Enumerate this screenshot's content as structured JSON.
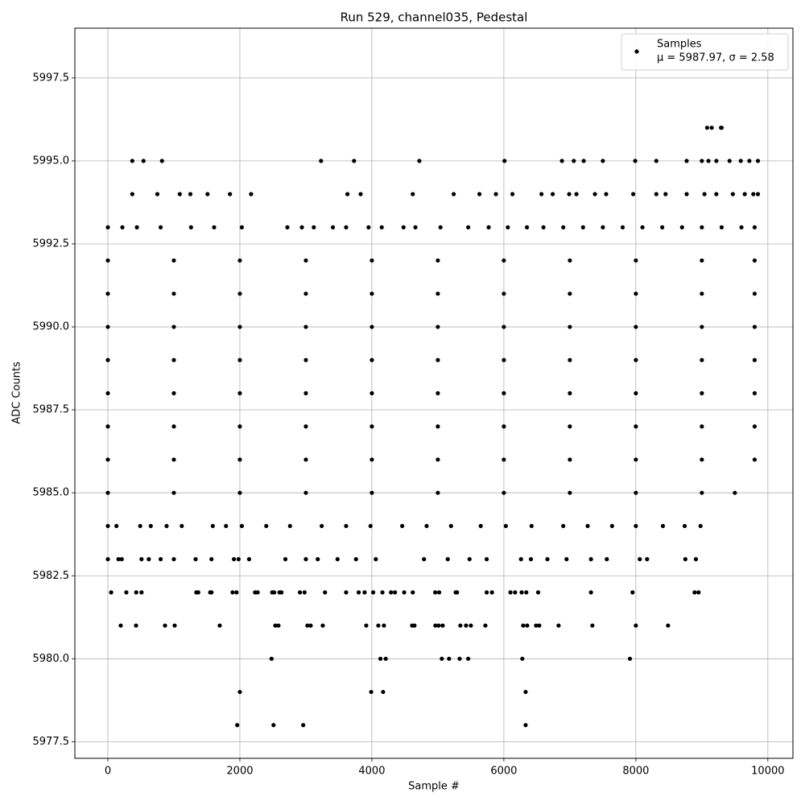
{
  "chart_data": {
    "type": "scatter",
    "title": "Run 529, channel035, Pedestal",
    "x_label": "Sample #",
    "y_label": "ADC Counts",
    "legend_position": "upper right",
    "legend_note": "μ = 5987.97, σ = 2.58",
    "grid": true,
    "xlim": [
      -500,
      10380
    ],
    "ylim": [
      5977.0,
      5999.0
    ],
    "xticks": [
      0,
      2000,
      4000,
      6000,
      8000,
      10000
    ],
    "yticks": [
      5977.5,
      {
        "value": 5980,
        "label": "5980.0"
      },
      5982.5,
      {
        "value": 5985,
        "label": "5985.0"
      },
      5987.5,
      {
        "value": 5990,
        "label": "5990.0"
      },
      5992.5,
      {
        "value": 5995,
        "label": "5995.0"
      },
      5997.5
    ],
    "series": [
      {
        "name": "Samples",
        "color": "#000000",
        "x": [
          1960,
          2510,
          2960,
          6330,
          2000,
          3990,
          4170,
          6330,
          2480,
          4130,
          4210,
          5060,
          5170,
          5330,
          5460,
          6280,
          7910,
          195,
          427,
          866,
          1012,
          1695,
          2537,
          2585,
          3024,
          3073,
          3256,
          3915,
          4098,
          4183,
          4610,
          4646,
          4963,
          5012,
          5073,
          5341,
          5427,
          5500,
          5720,
          6293,
          6354,
          6488,
          6537,
          6829,
          7341,
          8000,
          8488,
          50,
          280,
          430,
          510,
          1340,
          1370,
          1550,
          1570,
          1890,
          1950,
          2230,
          2270,
          2490,
          2520,
          2600,
          2630,
          2910,
          2980,
          3290,
          3610,
          3800,
          3890,
          4020,
          4160,
          4290,
          4350,
          4490,
          4620,
          4960,
          5020,
          5270,
          5290,
          5740,
          5820,
          6100,
          6170,
          6270,
          6340,
          6520,
          7320,
          7950,
          8890,
          8950,
          0,
          160,
          210,
          510,
          620,
          800,
          1000,
          1330,
          1570,
          1910,
          1980,
          2140,
          2690,
          3000,
          3180,
          3480,
          3760,
          4060,
          4790,
          5150,
          5480,
          5740,
          6260,
          6410,
          6660,
          6950,
          7320,
          7560,
          8060,
          8170,
          8750,
          8910,
          0,
          130,
          490,
          650,
          890,
          1120,
          1590,
          1790,
          2030,
          2400,
          2760,
          3240,
          3610,
          3980,
          4460,
          4830,
          5200,
          5650,
          6030,
          6420,
          6900,
          7270,
          7640,
          8000,
          8410,
          8740,
          8980,
          0,
          1000,
          2000,
          3000,
          4000,
          5000,
          6000,
          7000,
          8000,
          9000,
          9500,
          0,
          1000,
          2000,
          3000,
          4000,
          5000,
          6000,
          7000,
          8000,
          9000,
          9800,
          0,
          1000,
          2000,
          3000,
          4000,
          5000,
          6000,
          7000,
          8000,
          9000,
          9800,
          0,
          1000,
          2000,
          3000,
          4000,
          5000,
          6000,
          7000,
          8000,
          9000,
          9800,
          0,
          1000,
          2000,
          3000,
          4000,
          5000,
          6000,
          7000,
          8000,
          9000,
          9800,
          0,
          1000,
          2000,
          3000,
          4000,
          5000,
          6000,
          7000,
          8000,
          9000,
          9800,
          0,
          1000,
          2000,
          3000,
          4000,
          5000,
          6000,
          7000,
          8000,
          9000,
          9800,
          0,
          1000,
          2000,
          3000,
          4000,
          5000,
          6000,
          7000,
          8000,
          9000,
          9800,
          0,
          220,
          440,
          800,
          1260,
          1610,
          2030,
          2720,
          2940,
          3120,
          3410,
          3610,
          3950,
          4150,
          4480,
          4660,
          5040,
          5460,
          5770,
          6060,
          6350,
          6600,
          6900,
          7200,
          7500,
          7800,
          8100,
          8400,
          8700,
          9000,
          9300,
          9600,
          9800,
          370,
          750,
          1090,
          1250,
          1510,
          1850,
          2170,
          3630,
          3830,
          4620,
          5240,
          5630,
          5880,
          6130,
          6570,
          6740,
          6990,
          7100,
          7380,
          7550,
          7960,
          8310,
          8450,
          8770,
          9040,
          9220,
          9470,
          9650,
          9780,
          9850,
          370,
          540,
          820,
          3230,
          3730,
          4720,
          6010,
          6880,
          7060,
          7210,
          7500,
          7990,
          8310,
          8770,
          9000,
          9100,
          9220,
          9420,
          9590,
          9720,
          9850,
          9080,
          9150,
          9290,
          9300
        ],
        "values": [
          5978,
          5978,
          5978,
          5978,
          5979,
          5979,
          5979,
          5979,
          5980,
          5980,
          5980,
          5980,
          5980,
          5980,
          5980,
          5980,
          5980,
          5981,
          5981,
          5981,
          5981,
          5981,
          5981,
          5981,
          5981,
          5981,
          5981,
          5981,
          5981,
          5981,
          5981,
          5981,
          5981,
          5981,
          5981,
          5981,
          5981,
          5981,
          5981,
          5981,
          5981,
          5981,
          5981,
          5981,
          5981,
          5981,
          5981,
          5982,
          5982,
          5982,
          5982,
          5982,
          5982,
          5982,
          5982,
          5982,
          5982,
          5982,
          5982,
          5982,
          5982,
          5982,
          5982,
          5982,
          5982,
          5982,
          5982,
          5982,
          5982,
          5982,
          5982,
          5982,
          5982,
          5982,
          5982,
          5982,
          5982,
          5982,
          5982,
          5982,
          5982,
          5982,
          5982,
          5982,
          5982,
          5982,
          5982,
          5982,
          5982,
          5982,
          5983,
          5983,
          5983,
          5983,
          5983,
          5983,
          5983,
          5983,
          5983,
          5983,
          5983,
          5983,
          5983,
          5983,
          5983,
          5983,
          5983,
          5983,
          5983,
          5983,
          5983,
          5983,
          5983,
          5983,
          5983,
          5983,
          5983,
          5983,
          5983,
          5983,
          5983,
          5983,
          5984,
          5984,
          5984,
          5984,
          5984,
          5984,
          5984,
          5984,
          5984,
          5984,
          5984,
          5984,
          5984,
          5984,
          5984,
          5984,
          5984,
          5984,
          5984,
          5984,
          5984,
          5984,
          5984,
          5984,
          5984,
          5984,
          5984,
          5985,
          5985,
          5985,
          5985,
          5985,
          5985,
          5985,
          5985,
          5985,
          5985,
          5985,
          5986,
          5986,
          5986,
          5986,
          5986,
          5986,
          5986,
          5986,
          5986,
          5986,
          5986,
          5987,
          5987,
          5987,
          5987,
          5987,
          5987,
          5987,
          5987,
          5987,
          5987,
          5987,
          5988,
          5988,
          5988,
          5988,
          5988,
          5988,
          5988,
          5988,
          5988,
          5988,
          5988,
          5989,
          5989,
          5989,
          5989,
          5989,
          5989,
          5989,
          5989,
          5989,
          5989,
          5989,
          5990,
          5990,
          5990,
          5990,
          5990,
          5990,
          5990,
          5990,
          5990,
          5990,
          5990,
          5991,
          5991,
          5991,
          5991,
          5991,
          5991,
          5991,
          5991,
          5991,
          5991,
          5991,
          5992,
          5992,
          5992,
          5992,
          5992,
          5992,
          5992,
          5992,
          5992,
          5992,
          5992,
          5993,
          5993,
          5993,
          5993,
          5993,
          5993,
          5993,
          5993,
          5993,
          5993,
          5993,
          5993,
          5993,
          5993,
          5993,
          5993,
          5993,
          5993,
          5993,
          5993,
          5993,
          5993,
          5993,
          5993,
          5993,
          5993,
          5993,
          5993,
          5993,
          5993,
          5993,
          5993,
          5993,
          5994,
          5994,
          5994,
          5994,
          5994,
          5994,
          5994,
          5994,
          5994,
          5994,
          5994,
          5994,
          5994,
          5994,
          5994,
          5994,
          5994,
          5994,
          5994,
          5994,
          5994,
          5994,
          5994,
          5994,
          5994,
          5994,
          5994,
          5994,
          5994,
          5994,
          5995,
          5995,
          5995,
          5995,
          5995,
          5995,
          5995,
          5995,
          5995,
          5995,
          5995,
          5995,
          5995,
          5995,
          5995,
          5995,
          5995,
          5995,
          5995,
          5995,
          5995,
          5996,
          5996,
          5996,
          5996
        ]
      }
    ]
  }
}
